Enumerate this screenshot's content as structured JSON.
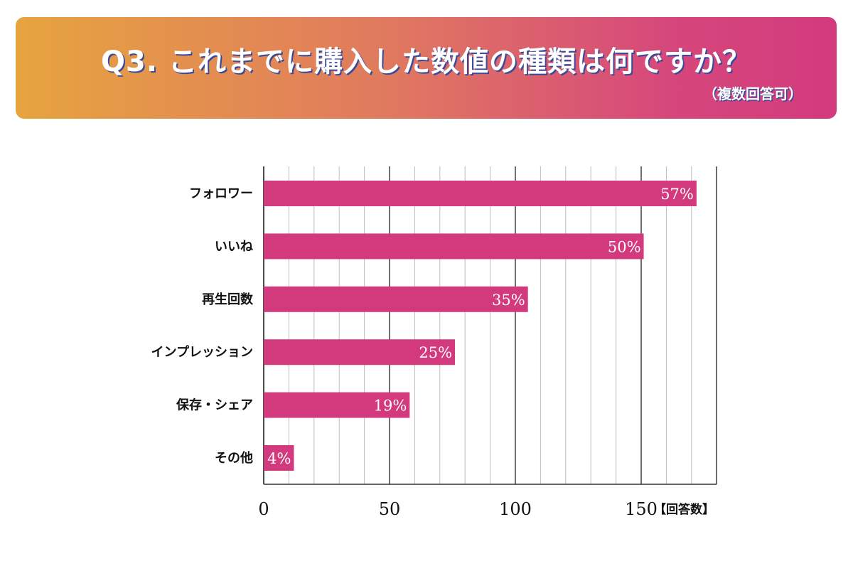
{
  "header": {
    "title": "Q3. これまでに購入した数値の種類は何ですか？",
    "subtitle": "（複数回答可）"
  },
  "colors": {
    "bar": "#d23a7d",
    "banner_start": "#e6a43f",
    "banner_end": "#d23a7d",
    "title_shadow": "#3a4a9a"
  },
  "chart_data": {
    "type": "bar",
    "orientation": "horizontal",
    "categories": [
      "フォロワー",
      "いいね",
      "再生回数",
      "インプレッション",
      "保存・シェア",
      "その他"
    ],
    "values": [
      172,
      151,
      105,
      76,
      58,
      12
    ],
    "data_labels": [
      "57%",
      "50%",
      "35%",
      "25%",
      "19%",
      "4%"
    ],
    "xlim": [
      0,
      180
    ],
    "x_ticks": [
      0,
      50,
      100,
      150
    ],
    "x_unit_label": "【回答数】",
    "grid": true
  }
}
